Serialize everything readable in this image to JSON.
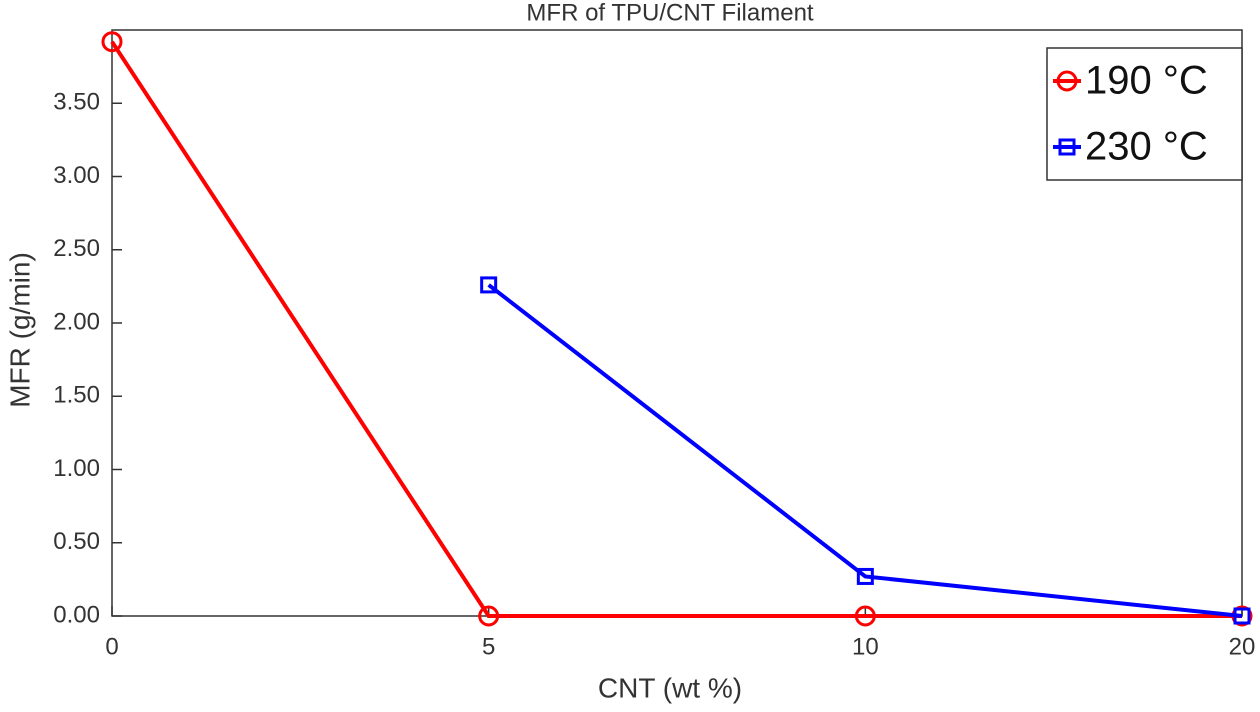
{
  "chart_data": {
    "type": "line",
    "title": "MFR of TPU/CNT Filament",
    "x_label": "CNT (wt %)",
    "y_label": "MFR (g/min)",
    "categories": [
      "0",
      "5",
      "10",
      "20"
    ],
    "series": [
      {
        "name": "190 °C",
        "color": "#ff0000",
        "marker": "circle",
        "values": [
          3.92,
          0,
          0,
          0
        ]
      },
      {
        "name": "230 °C",
        "color": "#0000ff",
        "marker": "square",
        "values": [
          null,
          2.26,
          0.27,
          0
        ]
      }
    ],
    "ylim": [
      0,
      4
    ],
    "yticks": [
      {
        "value": 0,
        "label": "0.00"
      },
      {
        "value": 0.5,
        "label": "0.50"
      },
      {
        "value": 1,
        "label": "1.00"
      },
      {
        "value": 1.5,
        "label": "1.50"
      },
      {
        "value": 2,
        "label": "2.00"
      },
      {
        "value": 2.5,
        "label": "2.50"
      },
      {
        "value": 3,
        "label": "3.00"
      },
      {
        "value": 3.5,
        "label": "3.50"
      }
    ],
    "grid": false,
    "legend": "upper right"
  }
}
